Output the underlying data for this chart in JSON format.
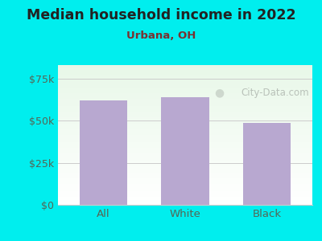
{
  "title": "Median household income in 2022",
  "subtitle": "Urbana, OH",
  "categories": [
    "All",
    "White",
    "Black"
  ],
  "values": [
    62000,
    64000,
    48500
  ],
  "bar_color": "#b8a8d0",
  "background_color": "#00eeee",
  "yticks": [
    0,
    25000,
    50000,
    75000
  ],
  "ytick_labels": [
    "$0",
    "$25k",
    "$50k",
    "$75k"
  ],
  "ylim": [
    0,
    83000
  ],
  "title_color": "#222222",
  "subtitle_color": "#7a3030",
  "tick_color": "#556655",
  "grid_color": "#cccccc",
  "watermark_text": "City-Data.com",
  "watermark_color": "#b0b8b0"
}
